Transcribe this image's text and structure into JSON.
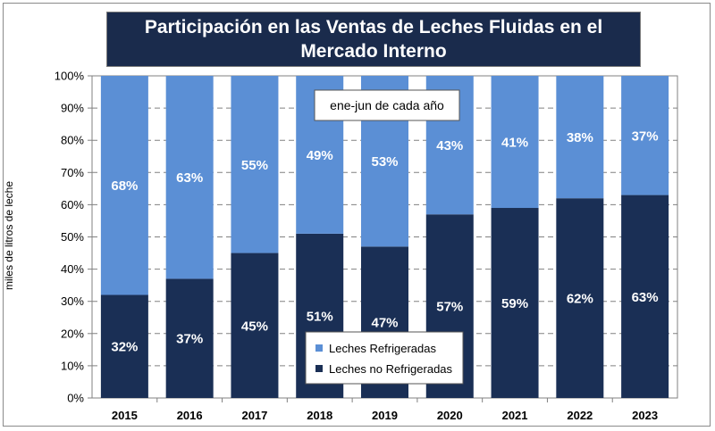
{
  "colors": {
    "refrigeradas": "#5b8fd5",
    "no_refrigeradas": "#1a2f55",
    "title_bg": "#1a2b4c"
  },
  "chart_data": {
    "type": "bar",
    "stacked": true,
    "title": "Participación en las Ventas de Leches Fluidas en el Mercado Interno",
    "subtitle": "ene-jun de cada año",
    "xlabel": "",
    "ylabel": "miles de litros de leche",
    "ylim": [
      0,
      100
    ],
    "y_ticks": [
      "0%",
      "10%",
      "20%",
      "30%",
      "40%",
      "50%",
      "60%",
      "70%",
      "80%",
      "90%",
      "100%"
    ],
    "grid": true,
    "legend_position": "bottom-center",
    "categories": [
      "2015",
      "2016",
      "2017",
      "2018",
      "2019",
      "2020",
      "2021",
      "2022",
      "2023"
    ],
    "series": [
      {
        "name": "Leches no Refrigeradas",
        "values": [
          32,
          37,
          45,
          51,
          47,
          57,
          59,
          62,
          63
        ],
        "labels": [
          "32%",
          "37%",
          "45%",
          "51%",
          "47%",
          "57%",
          "59%",
          "62%",
          "63%"
        ]
      },
      {
        "name": "Leches Refrigeradas",
        "values": [
          68,
          63,
          55,
          49,
          53,
          43,
          41,
          38,
          37
        ],
        "labels": [
          "68%",
          "63%",
          "55%",
          "49%",
          "53%",
          "43%",
          "41%",
          "38%",
          "37%"
        ]
      }
    ],
    "legend": [
      "Leches Refrigeradas",
      "Leches no Refrigeradas"
    ]
  }
}
